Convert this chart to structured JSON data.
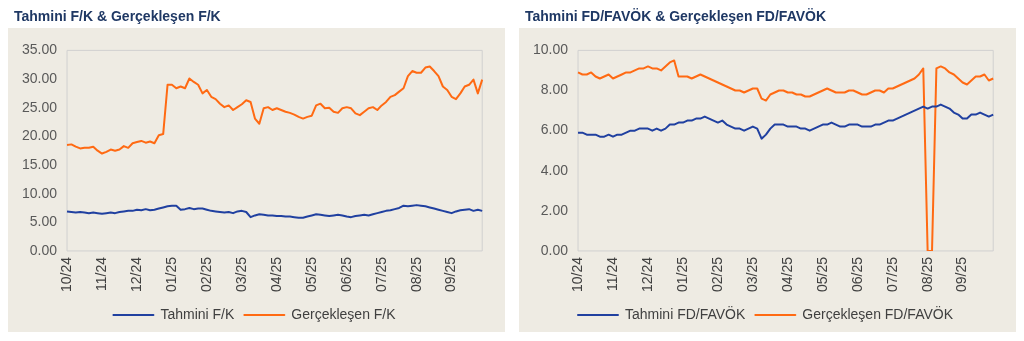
{
  "chart_data": [
    {
      "type": "line",
      "title": "Tahmini F/K & Gerçekleşen F/K",
      "legend": "bottom",
      "grid": false,
      "categories": [
        "10/24",
        null,
        null,
        null,
        null,
        null,
        null,
        null,
        "11/24",
        null,
        null,
        null,
        null,
        null,
        null,
        null,
        "12/24",
        null,
        null,
        null,
        null,
        null,
        null,
        null,
        "01/25",
        null,
        null,
        null,
        null,
        null,
        null,
        null,
        "02/25",
        null,
        null,
        null,
        null,
        null,
        null,
        null,
        "03/25",
        null,
        null,
        null,
        null,
        null,
        null,
        null,
        "04/25",
        null,
        null,
        null,
        null,
        null,
        null,
        null,
        "05/25",
        null,
        null,
        null,
        null,
        null,
        null,
        null,
        "06/25",
        null,
        null,
        null,
        null,
        null,
        null,
        null,
        "07/25",
        null,
        null,
        null,
        null,
        null,
        null,
        null,
        "08/25",
        null,
        null,
        null,
        null,
        null,
        null,
        null,
        "09/25",
        null,
        null,
        null,
        null,
        null,
        null,
        null
      ],
      "ylim": [
        0,
        35
      ],
      "yticks": [
        {
          "value": 0,
          "label": "0.00"
        },
        {
          "value": 5,
          "label": "5.00"
        },
        {
          "value": 10,
          "label": "10.00"
        },
        {
          "value": 15,
          "label": "15.00"
        },
        {
          "value": 20,
          "label": "20.00"
        },
        {
          "value": 25,
          "label": "25.00"
        },
        {
          "value": 30,
          "label": "30.00"
        },
        {
          "value": 35,
          "label": "35.00"
        }
      ],
      "series": [
        {
          "name": "Tahmini F/K",
          "color": "#2040a0",
          "values": [
            6.9,
            6.8,
            6.7,
            6.8,
            6.7,
            6.6,
            6.7,
            6.6,
            6.5,
            6.6,
            6.7,
            6.6,
            6.8,
            6.9,
            7.0,
            7.0,
            7.2,
            7.1,
            7.3,
            7.1,
            7.2,
            7.4,
            7.6,
            7.8,
            7.9,
            7.9,
            7.2,
            7.3,
            7.5,
            7.3,
            7.4,
            7.4,
            7.2,
            7.0,
            6.9,
            6.8,
            6.7,
            6.8,
            6.6,
            6.9,
            7.0,
            6.8,
            5.9,
            6.2,
            6.4,
            6.3,
            6.2,
            6.2,
            6.1,
            6.1,
            6.0,
            6.0,
            5.9,
            5.8,
            5.8,
            6.0,
            6.2,
            6.4,
            6.3,
            6.2,
            6.1,
            6.2,
            6.3,
            6.2,
            6.0,
            5.9,
            6.1,
            6.2,
            6.3,
            6.2,
            6.4,
            6.6,
            6.8,
            7.0,
            7.1,
            7.3,
            7.5,
            7.9,
            7.8,
            7.9,
            8.0,
            7.9,
            7.8,
            7.6,
            7.4,
            7.2,
            7.0,
            6.8,
            6.6,
            6.9,
            7.1,
            7.2,
            7.3,
            7.0,
            7.2,
            7.0
          ]
        },
        {
          "name": "Gerçekleşen F/K",
          "color": "#ff6a13",
          "values": [
            18.5,
            18.6,
            18.2,
            17.9,
            18.0,
            18.0,
            18.2,
            17.5,
            17.0,
            17.3,
            17.7,
            17.5,
            17.7,
            18.3,
            18.0,
            18.8,
            19.0,
            19.2,
            18.9,
            19.1,
            18.8,
            20.2,
            20.4,
            29.0,
            29.0,
            28.4,
            28.7,
            28.4,
            30.1,
            29.5,
            29.0,
            27.5,
            28.1,
            26.9,
            26.5,
            25.7,
            25.1,
            25.4,
            24.6,
            25.1,
            25.6,
            26.3,
            26.0,
            23.1,
            22.2,
            24.9,
            25.1,
            24.6,
            24.9,
            24.6,
            24.3,
            24.1,
            23.8,
            23.4,
            23.1,
            23.4,
            23.6,
            25.4,
            25.7,
            24.9,
            25.0,
            24.3,
            24.1,
            24.9,
            25.1,
            24.9,
            24.0,
            23.7,
            24.3,
            24.9,
            25.1,
            24.6,
            25.4,
            26.0,
            26.9,
            27.2,
            27.8,
            28.4,
            30.5,
            31.4,
            31.1,
            31.1,
            32.0,
            32.2,
            31.4,
            30.5,
            28.7,
            28.1,
            26.9,
            26.5,
            27.5,
            28.7,
            29.0,
            29.9,
            27.5,
            29.9
          ]
        }
      ]
    },
    {
      "type": "line",
      "title": "Tahmini FD/FAVÖK & Gerçekleşen FD/FAVÖK",
      "legend": "bottom",
      "grid": false,
      "categories": [
        "10/24",
        null,
        null,
        null,
        null,
        null,
        null,
        null,
        "11/24",
        null,
        null,
        null,
        null,
        null,
        null,
        null,
        "12/24",
        null,
        null,
        null,
        null,
        null,
        null,
        null,
        "01/25",
        null,
        null,
        null,
        null,
        null,
        null,
        null,
        "02/25",
        null,
        null,
        null,
        null,
        null,
        null,
        null,
        "03/25",
        null,
        null,
        null,
        null,
        null,
        null,
        null,
        "04/25",
        null,
        null,
        null,
        null,
        null,
        null,
        null,
        "05/25",
        null,
        null,
        null,
        null,
        null,
        null,
        null,
        "06/25",
        null,
        null,
        null,
        null,
        null,
        null,
        null,
        "07/25",
        null,
        null,
        null,
        null,
        null,
        null,
        null,
        "08/25",
        null,
        null,
        null,
        null,
        null,
        null,
        null,
        "09/25",
        null,
        null,
        null,
        null,
        null,
        null,
        null
      ],
      "ylim": [
        0,
        10
      ],
      "yticks": [
        {
          "value": 0,
          "label": "0.00"
        },
        {
          "value": 2,
          "label": "2.00"
        },
        {
          "value": 4,
          "label": "4.00"
        },
        {
          "value": 6,
          "label": "6.00"
        },
        {
          "value": 8,
          "label": "8.00"
        },
        {
          "value": 10,
          "label": "10.00"
        }
      ],
      "series": [
        {
          "name": "Tahmini FD/FAVÖK",
          "color": "#2040a0",
          "values": [
            5.9,
            5.9,
            5.8,
            5.8,
            5.8,
            5.7,
            5.7,
            5.8,
            5.7,
            5.8,
            5.8,
            5.9,
            6.0,
            6.0,
            6.1,
            6.1,
            6.1,
            6.0,
            6.1,
            6.0,
            6.1,
            6.3,
            6.3,
            6.4,
            6.4,
            6.5,
            6.5,
            6.6,
            6.6,
            6.7,
            6.6,
            6.5,
            6.4,
            6.5,
            6.3,
            6.2,
            6.1,
            6.1,
            6.0,
            6.1,
            6.2,
            6.1,
            5.6,
            5.8,
            6.1,
            6.3,
            6.3,
            6.3,
            6.2,
            6.2,
            6.2,
            6.1,
            6.1,
            6.0,
            6.1,
            6.2,
            6.3,
            6.3,
            6.4,
            6.3,
            6.2,
            6.2,
            6.3,
            6.3,
            6.3,
            6.2,
            6.2,
            6.2,
            6.3,
            6.3,
            6.4,
            6.5,
            6.5,
            6.6,
            6.7,
            6.8,
            6.9,
            7.0,
            7.1,
            7.2,
            7.1,
            7.2,
            7.2,
            7.3,
            7.2,
            7.1,
            6.9,
            6.8,
            6.6,
            6.6,
            6.8,
            6.8,
            6.9,
            6.8,
            6.7,
            6.8
          ]
        },
        {
          "name": "Gerçekleşen FD/FAVÖK",
          "color": "#ff6a13",
          "values": [
            8.9,
            8.8,
            8.8,
            8.9,
            8.7,
            8.6,
            8.7,
            8.8,
            8.6,
            8.7,
            8.8,
            8.9,
            8.9,
            9.0,
            9.1,
            9.1,
            9.2,
            9.1,
            9.1,
            9.0,
            9.2,
            9.4,
            9.5,
            8.7,
            8.7,
            8.7,
            8.6,
            8.7,
            8.8,
            8.7,
            8.6,
            8.5,
            8.4,
            8.3,
            8.2,
            8.1,
            8.0,
            8.0,
            7.9,
            8.0,
            8.1,
            8.1,
            7.6,
            7.5,
            7.8,
            7.9,
            8.0,
            8.0,
            7.9,
            7.9,
            7.8,
            7.8,
            7.7,
            7.7,
            7.8,
            7.9,
            8.0,
            8.1,
            8.0,
            7.9,
            7.9,
            7.9,
            8.0,
            8.0,
            7.9,
            7.8,
            7.8,
            7.9,
            8.0,
            8.0,
            7.9,
            8.1,
            8.1,
            8.2,
            8.3,
            8.4,
            8.5,
            8.6,
            8.8,
            9.1,
            0,
            0,
            9.1,
            9.2,
            9.1,
            8.9,
            8.8,
            8.6,
            8.4,
            8.3,
            8.5,
            8.7,
            8.7,
            8.8,
            8.5,
            8.6
          ]
        }
      ]
    }
  ]
}
